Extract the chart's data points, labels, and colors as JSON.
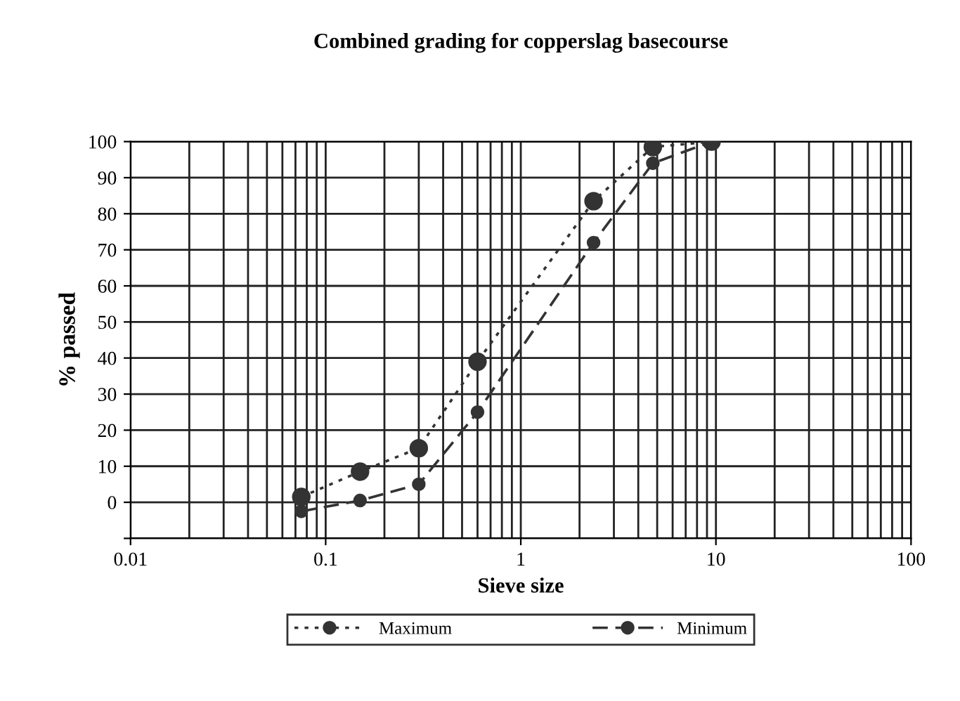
{
  "chart_data": {
    "type": "line",
    "title": "Combined grading for copperslag basecourse",
    "xlabel": "Sieve size",
    "ylabel": "% passed",
    "x": [
      0.075,
      0.15,
      0.3,
      0.6,
      2.36,
      4.75,
      9.5
    ],
    "series": [
      {
        "name": "Maximum",
        "color": "#333333",
        "line_style": "dotted",
        "values": [
          1.5,
          8.5,
          15,
          39,
          83.5,
          98.5,
          100
        ]
      },
      {
        "name": "Minimum",
        "color": "#333333",
        "line_style": "dashed",
        "values": [
          -2.5,
          0.5,
          5,
          25,
          72,
          94,
          100
        ]
      }
    ],
    "log": "x",
    "xlim": [
      0.01,
      100
    ],
    "xticks": [
      0.01,
      0.1,
      1,
      10,
      100
    ],
    "ylim": [
      -10,
      100
    ],
    "yticks": [
      {
        "value": -10,
        "label": null
      },
      0,
      10,
      20,
      30,
      40,
      50,
      60,
      70,
      80,
      90,
      100
    ],
    "grid": true,
    "marker": "circle",
    "legend": "bottom"
  }
}
